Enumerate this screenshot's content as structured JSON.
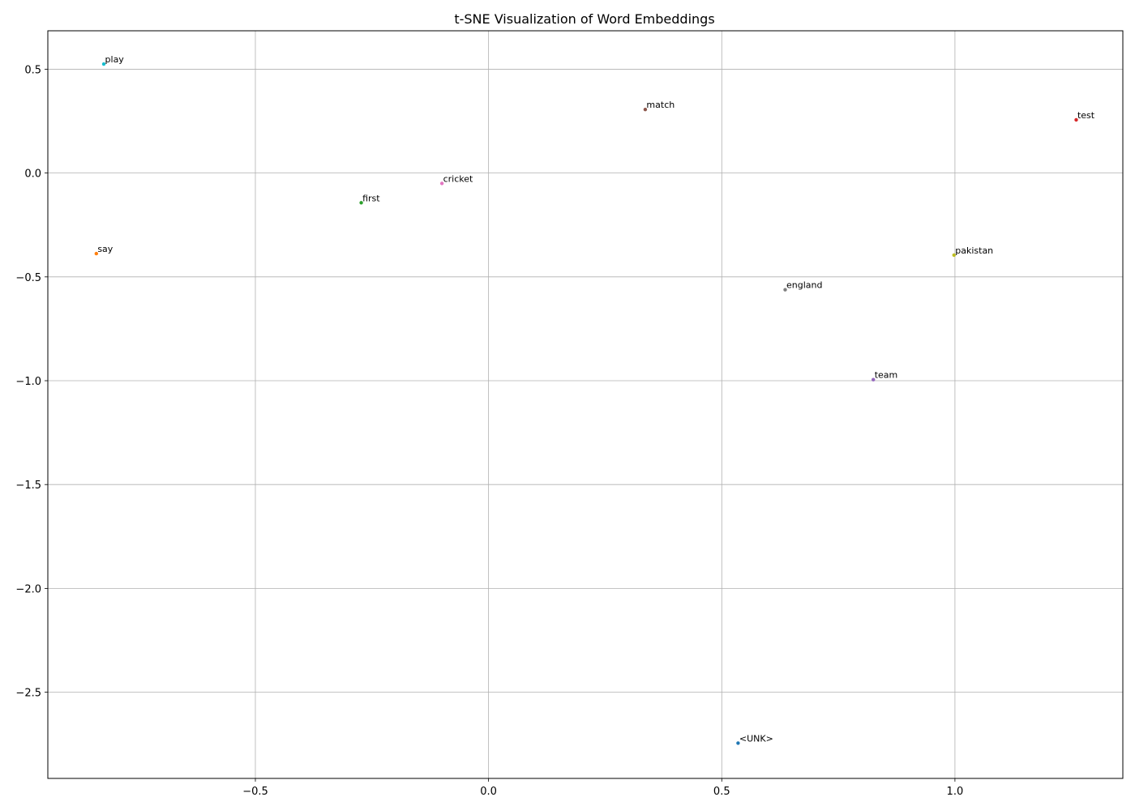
{
  "chart_data": {
    "type": "scatter",
    "title": "t-SNE Visualization of Word Embeddings",
    "xlabel": "",
    "ylabel": "",
    "xlim": [
      -0.945,
      1.36
    ],
    "ylim": [
      -2.915,
      0.685
    ],
    "xticks": [
      -0.5,
      0.0,
      0.5,
      1.0
    ],
    "xtick_labels": [
      "−0.5",
      "0.0",
      "0.5",
      "1.0"
    ],
    "yticks": [
      0.5,
      0.0,
      -0.5,
      -1.0,
      -1.5,
      -2.0,
      -2.5
    ],
    "ytick_labels": [
      "0.5",
      "0.0",
      "−0.5",
      "−1.0",
      "−1.5",
      "−2.0",
      "−2.5"
    ],
    "grid": true,
    "points": [
      {
        "label": "<UNK>",
        "x": 0.535,
        "y": -2.745,
        "color": "#1f77b4"
      },
      {
        "label": "say",
        "x": -0.841,
        "y": -0.388,
        "color": "#ff7f0e"
      },
      {
        "label": "first",
        "x": -0.273,
        "y": -0.143,
        "color": "#2ca02c"
      },
      {
        "label": "test",
        "x": 1.26,
        "y": 0.256,
        "color": "#d62728"
      },
      {
        "label": "team",
        "x": 0.825,
        "y": -0.995,
        "color": "#9467bd"
      },
      {
        "label": "match",
        "x": 0.336,
        "y": 0.306,
        "color": "#8c564b"
      },
      {
        "label": "cricket",
        "x": -0.1,
        "y": -0.05,
        "color": "#e377c2"
      },
      {
        "label": "england",
        "x": 0.636,
        "y": -0.562,
        "color": "#7f7f7f"
      },
      {
        "label": "pakistan",
        "x": 0.998,
        "y": -0.395,
        "color": "#bcbd22"
      },
      {
        "label": "play",
        "x": -0.825,
        "y": 0.525,
        "color": "#17becf"
      }
    ]
  }
}
